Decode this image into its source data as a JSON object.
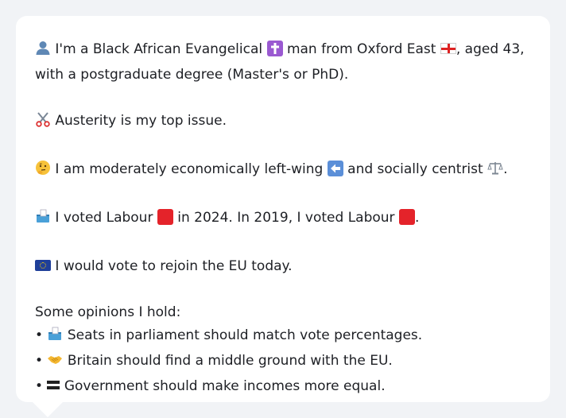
{
  "colors": {
    "background": "#f1f3f6",
    "bubble": "#ffffff",
    "text": "#1d1f24",
    "labour_red": "#e4232a"
  },
  "profile": {
    "line1_a": "I'm a Black African Evangelical",
    "line1_b": "man from Oxford East",
    "line1_c": ", aged 43,",
    "line2": "with a postgraduate degree (Master's or PhD)."
  },
  "issue": {
    "text": "Austerity is my top issue."
  },
  "ideology": {
    "text_a": "I am moderately economically left-wing",
    "text_b": "and socially centrist",
    "text_c": "."
  },
  "votes": {
    "text_a": "I voted Labour",
    "text_b": "in 2024. In 2019, I voted Labour",
    "text_c": "."
  },
  "eu": {
    "text": "I would vote to rejoin the EU today."
  },
  "opinions": {
    "heading": "Some opinions I hold:",
    "bullet": "•",
    "items": [
      "Seats in parliament should match vote percentages.",
      "Britain should find a middle ground with the EU.",
      "Government should make incomes more equal."
    ]
  },
  "icons": [
    "person-icon",
    "latin-cross-icon",
    "england-flag-icon",
    "scissors-icon",
    "thinking-face-icon",
    "left-arrow-icon",
    "balance-scale-icon",
    "ballot-box-icon",
    "red-square-icon",
    "eu-flag-icon",
    "handshake-icon",
    "equals-icon"
  ]
}
